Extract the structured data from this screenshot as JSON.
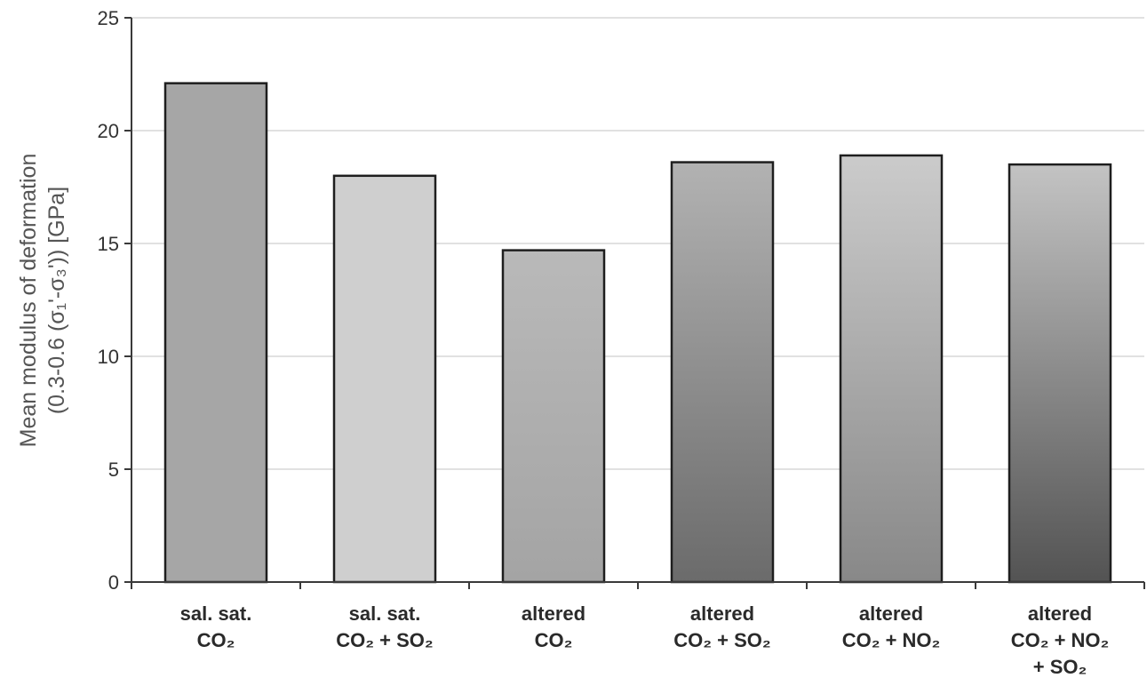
{
  "chart_data": {
    "type": "bar",
    "categories": [
      {
        "lines": [
          "sal. sat.",
          "CO₂"
        ]
      },
      {
        "lines": [
          "sal. sat.",
          "CO₂ + SO₂"
        ]
      },
      {
        "lines": [
          "altered",
          "CO₂"
        ]
      },
      {
        "lines": [
          "altered",
          "CO₂ + SO₂"
        ]
      },
      {
        "lines": [
          "altered",
          "CO₂ + NO₂"
        ]
      },
      {
        "lines": [
          "altered",
          "CO₂ + NO₂",
          "+ SO₂"
        ]
      }
    ],
    "values": [
      22.1,
      18.0,
      14.7,
      18.6,
      18.9,
      18.5
    ],
    "ylabel": [
      "Mean modulus of deformation",
      "(0.3-0.6 (σ₁'-σ₃')) [GPa]"
    ],
    "xlabel": "",
    "ylim": [
      0,
      25
    ],
    "yticks": [
      0,
      5,
      10,
      15,
      20,
      25
    ],
    "grid": true,
    "legend": "none",
    "bar_fills": [
      {
        "top": "#a6a6a6",
        "bottom": "#a6a6a6"
      },
      {
        "top": "#cfcfcf",
        "bottom": "#cfcfcf"
      },
      {
        "top": "#b9b9b9",
        "bottom": "#a4a4a4"
      },
      {
        "top": "#b2b2b2",
        "bottom": "#6b6b6b"
      },
      {
        "top": "#cbcbcb",
        "bottom": "#888888"
      },
      {
        "top": "#c3c3c3",
        "bottom": "#535353"
      }
    ],
    "colors": {
      "grid": "#cfcfcf",
      "axis": "#3a3a3a",
      "bar_outline": "#1e1e1e"
    }
  }
}
